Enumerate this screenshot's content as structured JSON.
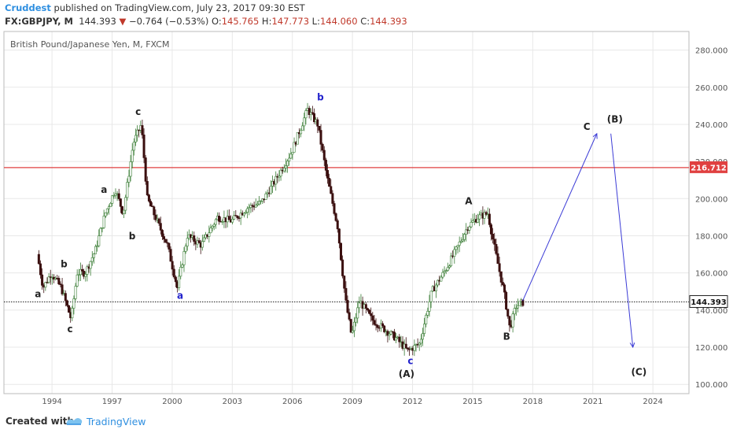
{
  "header": {
    "author": "Cruddest",
    "published_text": " published on TradingView.com, July 23, 2017 09:30 EST",
    "symbol": "FX:GBPJPY, M",
    "last": "144.393",
    "change": "−0.764 (−0.53%)",
    "o_label": "O:",
    "o_value": "145.765",
    "h_label": "H:",
    "h_value": "147.773",
    "l_label": "L:",
    "l_value": "144.060",
    "c_label": "C:",
    "c_value": "144.393"
  },
  "chart_title": "British Pound/Japanese Yen, M, FXCM",
  "footer": {
    "created_with": "Created with",
    "brand": "TradingView"
  },
  "colors": {
    "up": "#3a7d35",
    "down": "#3a0f0f",
    "resistance": "#e04040",
    "projection": "#3b3bd6",
    "blue_label": "#2222cc"
  },
  "chart_data": {
    "type": "line",
    "title": "British Pound/Japanese Yen, M, FXCM",
    "x_ticks": [
      "1994",
      "1997",
      "2000",
      "2003",
      "2006",
      "2009",
      "2012",
      "2015",
      "2018",
      "2021",
      "2024"
    ],
    "y_ticks": [
      "100.000",
      "120.000",
      "140.000",
      "160.000",
      "180.000",
      "200.000",
      "220.000",
      "240.000",
      "260.000",
      "280.000"
    ],
    "xlim": [
      1991.6,
      2025.8
    ],
    "ylim": [
      95,
      290
    ],
    "grid": true,
    "price_series": {
      "x": [
        1993.3,
        1993.6,
        1994.0,
        1994.5,
        1995.0,
        1995.3,
        1995.7,
        1996.2,
        1996.7,
        1997.2,
        1997.6,
        1998.1,
        1998.5,
        1998.8,
        1999.2,
        1999.8,
        2000.3,
        2000.8,
        2001.5,
        2002.3,
        2003.0,
        2003.8,
        2004.5,
        2005.2,
        2006.0,
        2006.8,
        2007.3,
        2007.8,
        2008.3,
        2008.7,
        2009.0,
        2009.4,
        2010.0,
        2010.6,
        2011.2,
        2011.8,
        2012.4,
        2013.0,
        2013.6,
        2014.2,
        2014.8,
        2015.3,
        2015.8,
        2016.2,
        2016.6,
        2016.9,
        2017.2,
        2017.5
      ],
      "values": [
        170,
        152,
        160,
        152,
        135,
        160,
        160,
        172,
        192,
        205,
        192,
        230,
        240,
        200,
        190,
        175,
        152,
        180,
        175,
        190,
        188,
        195,
        198,
        210,
        225,
        248,
        240,
        210,
        185,
        145,
        126,
        145,
        135,
        130,
        125,
        118,
        122,
        150,
        160,
        172,
        185,
        190,
        192,
        170,
        150,
        130,
        142,
        144
      ]
    },
    "resistance_level": 216.712,
    "resistance_label": "216.712",
    "last_price": 144.393,
    "last_price_label": "144.393",
    "projection": {
      "x": [
        2017.5,
        2021.2,
        2021.9,
        2023.0
      ],
      "values": [
        145,
        235,
        235,
        120
      ]
    },
    "annotations": [
      {
        "text": "a",
        "x": 1993.3,
        "y": 147,
        "color": "#222"
      },
      {
        "text": "b",
        "x": 1994.6,
        "y": 163,
        "color": "#222"
      },
      {
        "text": "c",
        "x": 1994.9,
        "y": 128,
        "color": "#222"
      },
      {
        "text": "b",
        "x": 1998.0,
        "y": 178,
        "color": "#222"
      },
      {
        "text": "a",
        "x": 1996.6,
        "y": 203,
        "color": "#222"
      },
      {
        "text": "c",
        "x": 1998.3,
        "y": 245,
        "color": "#222"
      },
      {
        "text": "a",
        "x": 2000.4,
        "y": 146,
        "color": "#2222cc"
      },
      {
        "text": "b",
        "x": 2007.4,
        "y": 253,
        "color": "#2222cc"
      },
      {
        "text": "c",
        "x": 2011.9,
        "y": 111,
        "color": "#2222cc"
      },
      {
        "text": "(A)",
        "x": 2011.7,
        "y": 104,
        "color": "#222"
      },
      {
        "text": "A",
        "x": 2014.8,
        "y": 197,
        "color": "#222"
      },
      {
        "text": "B",
        "x": 2016.7,
        "y": 124,
        "color": "#222"
      },
      {
        "text": "C",
        "x": 2020.7,
        "y": 237,
        "color": "#222"
      },
      {
        "text": "(B)",
        "x": 2022.1,
        "y": 241,
        "color": "#222"
      },
      {
        "text": "(C)",
        "x": 2023.3,
        "y": 105,
        "color": "#222"
      }
    ]
  }
}
